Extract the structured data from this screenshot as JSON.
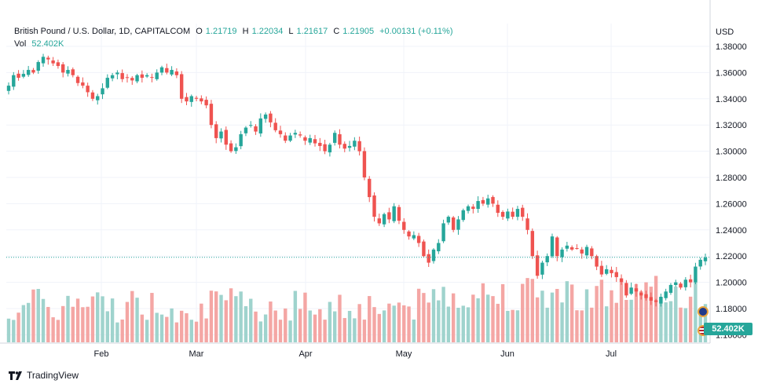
{
  "legend": {
    "symbol": "British Pound / U.S. Dollar, 1D, CAPITALCOM",
    "open_label": "O",
    "open": "1.21719",
    "high_label": "H",
    "high": "1.22034",
    "low_label": "L",
    "low": "1.21617",
    "close_label": "C",
    "close": "1.21905",
    "change": "+0.00131 (+0.11%)",
    "vol_label": "Vol",
    "vol": "52.402K"
  },
  "axis": {
    "currency": "USD"
  },
  "last_price_tag": "52.402K",
  "brand": "TradingView",
  "colors": {
    "up": "#26a69a",
    "down": "#ef5350",
    "vol_up": "#9fd3cd",
    "vol_down": "#f4a6a4",
    "grid": "#f0f3fa"
  },
  "chart_data": {
    "type": "candlestick",
    "y_ticks": [
      "1.38000",
      "1.36000",
      "1.34000",
      "1.32000",
      "1.30000",
      "1.28000",
      "1.26000",
      "1.24000",
      "1.22000",
      "1.20000",
      "1.18000",
      "1.16000"
    ],
    "ylim": [
      1.16,
      1.38
    ],
    "x_ticks": [
      "Feb",
      "Mar",
      "Apr",
      "May",
      "Jun",
      "Jul"
    ],
    "grid": true,
    "last_close": 1.21905,
    "closes": [
      1.35,
      1.358,
      1.356,
      1.359,
      1.362,
      1.36,
      1.368,
      1.372,
      1.37,
      1.367,
      1.365,
      1.36,
      1.362,
      1.358,
      1.352,
      1.35,
      1.345,
      1.34,
      1.342,
      1.348,
      1.356,
      1.358,
      1.36,
      1.355,
      1.356,
      1.354,
      1.358,
      1.356,
      1.358,
      1.356,
      1.36,
      1.364,
      1.36,
      1.362,
      1.358,
      1.34,
      1.338,
      1.342,
      1.34,
      1.338,
      1.335,
      1.32,
      1.31,
      1.315,
      1.305,
      1.3,
      1.303,
      1.313,
      1.318,
      1.32,
      1.315,
      1.325,
      1.328,
      1.322,
      1.316,
      1.313,
      1.308,
      1.312,
      1.314,
      1.312,
      1.308,
      1.31,
      1.306,
      1.304,
      1.3,
      1.305,
      1.314,
      1.305,
      1.302,
      1.304,
      1.308,
      1.3,
      1.28,
      1.265,
      1.25,
      1.245,
      1.252,
      1.248,
      1.258,
      1.247,
      1.24,
      1.235,
      1.236,
      1.23,
      1.22,
      1.215,
      1.225,
      1.23,
      1.245,
      1.25,
      1.24,
      1.248,
      1.255,
      1.258,
      1.256,
      1.262,
      1.26,
      1.264,
      1.26,
      1.253,
      1.25,
      1.254,
      1.25,
      1.256,
      1.25,
      1.24,
      1.22,
      1.205,
      1.215,
      1.22,
      1.235,
      1.22,
      1.225,
      1.228,
      1.225,
      1.226,
      1.222,
      1.227,
      1.22,
      1.212,
      1.206,
      1.21,
      1.207,
      1.204,
      1.2,
      1.19,
      1.196,
      1.193,
      1.19,
      1.188,
      1.186,
      1.185,
      1.189,
      1.193,
      1.198,
      1.2,
      1.196,
      1.202,
      1.2,
      1.212,
      1.2172,
      1.219
    ],
    "volume_label": "Vol"
  }
}
